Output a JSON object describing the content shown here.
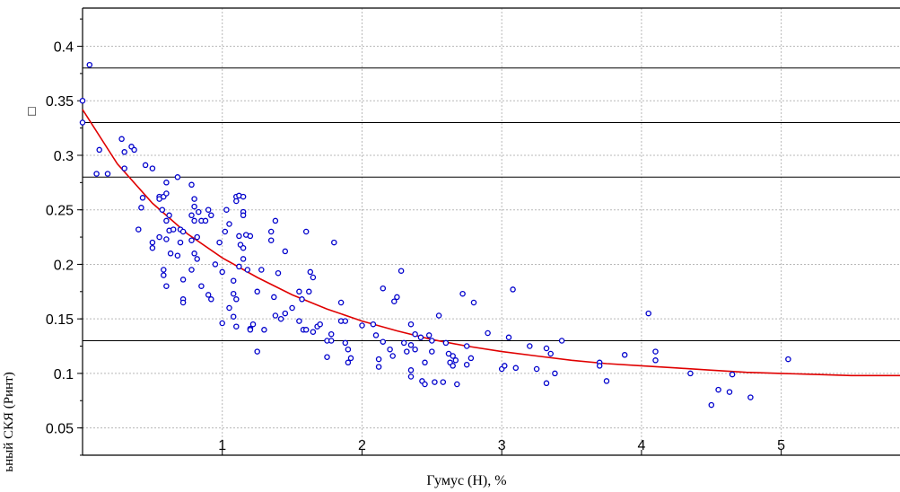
{
  "chart_data": {
    "type": "scatter",
    "xlabel": "Гумус (H), %",
    "ylabel": "ьный СКЯ (Pинт)",
    "ylabel_glyph": "□",
    "xlim": [
      0.0,
      5.85
    ],
    "ylim": [
      0.025,
      0.435
    ],
    "xticks": [
      1,
      2,
      3,
      4,
      5
    ],
    "yticks": [
      0.05,
      0.1,
      0.15,
      0.2,
      0.25,
      0.3,
      0.35,
      0.4
    ],
    "ytick_labels": [
      "0.05",
      "0.1",
      "0.15",
      "0.2",
      "0.25",
      "0.3",
      "0.35",
      "0.4"
    ],
    "hlines_solid": [
      0.13,
      0.28,
      0.33,
      0.38
    ],
    "grid": true,
    "colors": {
      "points": "#0000cc",
      "curve": "#e00000",
      "grid": "#b8b8b8",
      "axis": "#000000"
    },
    "series": [
      {
        "type": "scatter",
        "points": [
          [
            0.05,
            0.383
          ],
          [
            0.0,
            0.35
          ],
          [
            0.0,
            0.33
          ],
          [
            0.12,
            0.305
          ],
          [
            0.1,
            0.283
          ],
          [
            0.18,
            0.283
          ],
          [
            0.28,
            0.315
          ],
          [
            0.3,
            0.303
          ],
          [
            0.3,
            0.288
          ],
          [
            0.35,
            0.308
          ],
          [
            0.37,
            0.305
          ],
          [
            0.45,
            0.291
          ],
          [
            0.5,
            0.288
          ],
          [
            0.43,
            0.261
          ],
          [
            0.42,
            0.252
          ],
          [
            0.4,
            0.232
          ],
          [
            0.5,
            0.22
          ],
          [
            0.5,
            0.215
          ],
          [
            0.55,
            0.262
          ],
          [
            0.55,
            0.26
          ],
          [
            0.57,
            0.25
          ],
          [
            0.58,
            0.262
          ],
          [
            0.6,
            0.275
          ],
          [
            0.6,
            0.265
          ],
          [
            0.62,
            0.245
          ],
          [
            0.6,
            0.24
          ],
          [
            0.62,
            0.231
          ],
          [
            0.55,
            0.225
          ],
          [
            0.6,
            0.223
          ],
          [
            0.63,
            0.21
          ],
          [
            0.58,
            0.195
          ],
          [
            0.58,
            0.19
          ],
          [
            0.6,
            0.18
          ],
          [
            0.65,
            0.232
          ],
          [
            0.68,
            0.28
          ],
          [
            0.7,
            0.232
          ],
          [
            0.72,
            0.23
          ],
          [
            0.7,
            0.22
          ],
          [
            0.68,
            0.208
          ],
          [
            0.72,
            0.168
          ],
          [
            0.72,
            0.165
          ],
          [
            0.72,
            0.186
          ],
          [
            0.78,
            0.273
          ],
          [
            0.8,
            0.26
          ],
          [
            0.8,
            0.253
          ],
          [
            0.78,
            0.245
          ],
          [
            0.8,
            0.24
          ],
          [
            0.83,
            0.248
          ],
          [
            0.85,
            0.24
          ],
          [
            0.82,
            0.225
          ],
          [
            0.78,
            0.222
          ],
          [
            0.8,
            0.21
          ],
          [
            0.78,
            0.195
          ],
          [
            0.82,
            0.205
          ],
          [
            0.85,
            0.18
          ],
          [
            0.9,
            0.25
          ],
          [
            0.88,
            0.24
          ],
          [
            0.92,
            0.245
          ],
          [
            0.95,
            0.2
          ],
          [
            0.9,
            0.172
          ],
          [
            0.92,
            0.168
          ],
          [
            0.98,
            0.22
          ],
          [
            1.0,
            0.193
          ],
          [
            1.03,
            0.25
          ],
          [
            1.05,
            0.237
          ],
          [
            1.02,
            0.23
          ],
          [
            1.0,
            0.146
          ],
          [
            1.05,
            0.16
          ],
          [
            1.08,
            0.173
          ],
          [
            1.1,
            0.262
          ],
          [
            1.12,
            0.263
          ],
          [
            1.1,
            0.258
          ],
          [
            1.15,
            0.262
          ],
          [
            1.15,
            0.248
          ],
          [
            1.15,
            0.245
          ],
          [
            1.17,
            0.227
          ],
          [
            1.12,
            0.226
          ],
          [
            1.2,
            0.226
          ],
          [
            1.13,
            0.218
          ],
          [
            1.15,
            0.215
          ],
          [
            1.15,
            0.205
          ],
          [
            1.12,
            0.198
          ],
          [
            1.08,
            0.185
          ],
          [
            1.1,
            0.168
          ],
          [
            1.08,
            0.152
          ],
          [
            1.1,
            0.143
          ],
          [
            1.18,
            0.195
          ],
          [
            1.2,
            0.141
          ],
          [
            1.2,
            0.14
          ],
          [
            1.22,
            0.145
          ],
          [
            1.25,
            0.175
          ],
          [
            1.28,
            0.195
          ],
          [
            1.25,
            0.12
          ],
          [
            1.3,
            0.14
          ],
          [
            1.35,
            0.23
          ],
          [
            1.35,
            0.222
          ],
          [
            1.38,
            0.24
          ],
          [
            1.4,
            0.192
          ],
          [
            1.37,
            0.17
          ],
          [
            1.38,
            0.153
          ],
          [
            1.42,
            0.15
          ],
          [
            1.45,
            0.212
          ],
          [
            1.45,
            0.155
          ],
          [
            1.5,
            0.16
          ],
          [
            1.55,
            0.175
          ],
          [
            1.57,
            0.168
          ],
          [
            1.55,
            0.148
          ],
          [
            1.58,
            0.14
          ],
          [
            1.6,
            0.23
          ],
          [
            1.62,
            0.175
          ],
          [
            1.63,
            0.193
          ],
          [
            1.65,
            0.188
          ],
          [
            1.6,
            0.14
          ],
          [
            1.65,
            0.138
          ],
          [
            1.68,
            0.143
          ],
          [
            1.7,
            0.145
          ],
          [
            1.75,
            0.13
          ],
          [
            1.75,
            0.115
          ],
          [
            1.78,
            0.13
          ],
          [
            1.78,
            0.136
          ],
          [
            1.8,
            0.22
          ],
          [
            1.85,
            0.165
          ],
          [
            1.85,
            0.148
          ],
          [
            1.88,
            0.128
          ],
          [
            1.9,
            0.122
          ],
          [
            1.9,
            0.11
          ],
          [
            1.92,
            0.114
          ],
          [
            1.88,
            0.148
          ],
          [
            2.0,
            0.144
          ],
          [
            2.08,
            0.145
          ],
          [
            2.1,
            0.135
          ],
          [
            2.12,
            0.113
          ],
          [
            2.15,
            0.129
          ],
          [
            2.15,
            0.178
          ],
          [
            2.2,
            0.122
          ],
          [
            2.22,
            0.116
          ],
          [
            2.23,
            0.166
          ],
          [
            2.25,
            0.17
          ],
          [
            2.12,
            0.106
          ],
          [
            2.28,
            0.194
          ],
          [
            2.3,
            0.128
          ],
          [
            2.32,
            0.12
          ],
          [
            2.35,
            0.145
          ],
          [
            2.35,
            0.126
          ],
          [
            2.38,
            0.136
          ],
          [
            2.38,
            0.122
          ],
          [
            2.35,
            0.103
          ],
          [
            2.35,
            0.097
          ],
          [
            2.42,
            0.133
          ],
          [
            2.43,
            0.093
          ],
          [
            2.45,
            0.09
          ],
          [
            2.45,
            0.11
          ],
          [
            2.48,
            0.135
          ],
          [
            2.5,
            0.13
          ],
          [
            2.5,
            0.12
          ],
          [
            2.52,
            0.092
          ],
          [
            2.55,
            0.153
          ],
          [
            2.58,
            0.092
          ],
          [
            2.6,
            0.128
          ],
          [
            2.62,
            0.118
          ],
          [
            2.63,
            0.11
          ],
          [
            2.65,
            0.116
          ],
          [
            2.65,
            0.107
          ],
          [
            2.67,
            0.112
          ],
          [
            2.68,
            0.09
          ],
          [
            2.72,
            0.173
          ],
          [
            2.75,
            0.125
          ],
          [
            2.75,
            0.108
          ],
          [
            2.78,
            0.114
          ],
          [
            2.8,
            0.165
          ],
          [
            2.9,
            0.137
          ],
          [
            3.0,
            0.104
          ],
          [
            3.02,
            0.107
          ],
          [
            3.05,
            0.133
          ],
          [
            3.08,
            0.177
          ],
          [
            3.1,
            0.105
          ],
          [
            3.2,
            0.125
          ],
          [
            3.25,
            0.104
          ],
          [
            3.32,
            0.123
          ],
          [
            3.32,
            0.091
          ],
          [
            3.35,
            0.118
          ],
          [
            3.38,
            0.1
          ],
          [
            3.43,
            0.13
          ],
          [
            3.7,
            0.11
          ],
          [
            3.7,
            0.107
          ],
          [
            3.75,
            0.093
          ],
          [
            3.88,
            0.117
          ],
          [
            4.05,
            0.155
          ],
          [
            4.1,
            0.12
          ],
          [
            4.1,
            0.112
          ],
          [
            4.35,
            0.1
          ],
          [
            4.5,
            0.071
          ],
          [
            4.55,
            0.085
          ],
          [
            4.63,
            0.083
          ],
          [
            4.65,
            0.099
          ],
          [
            4.78,
            0.078
          ],
          [
            5.05,
            0.113
          ]
        ]
      },
      {
        "type": "line",
        "name": "",
        "curve": "exponential",
        "x": [
          0.0,
          0.25,
          0.5,
          0.75,
          1.0,
          1.25,
          1.5,
          1.75,
          2.0,
          2.25,
          2.5,
          2.75,
          3.0,
          3.25,
          3.5,
          3.75,
          4.0,
          4.25,
          4.5,
          4.75,
          5.0,
          5.25,
          5.5,
          5.75,
          5.85
        ],
        "y": [
          0.342,
          0.292,
          0.256,
          0.228,
          0.206,
          0.188,
          0.172,
          0.159,
          0.148,
          0.139,
          0.131,
          0.125,
          0.12,
          0.116,
          0.112,
          0.109,
          0.107,
          0.105,
          0.103,
          0.101,
          0.1,
          0.099,
          0.098,
          0.098,
          0.098
        ]
      }
    ]
  }
}
